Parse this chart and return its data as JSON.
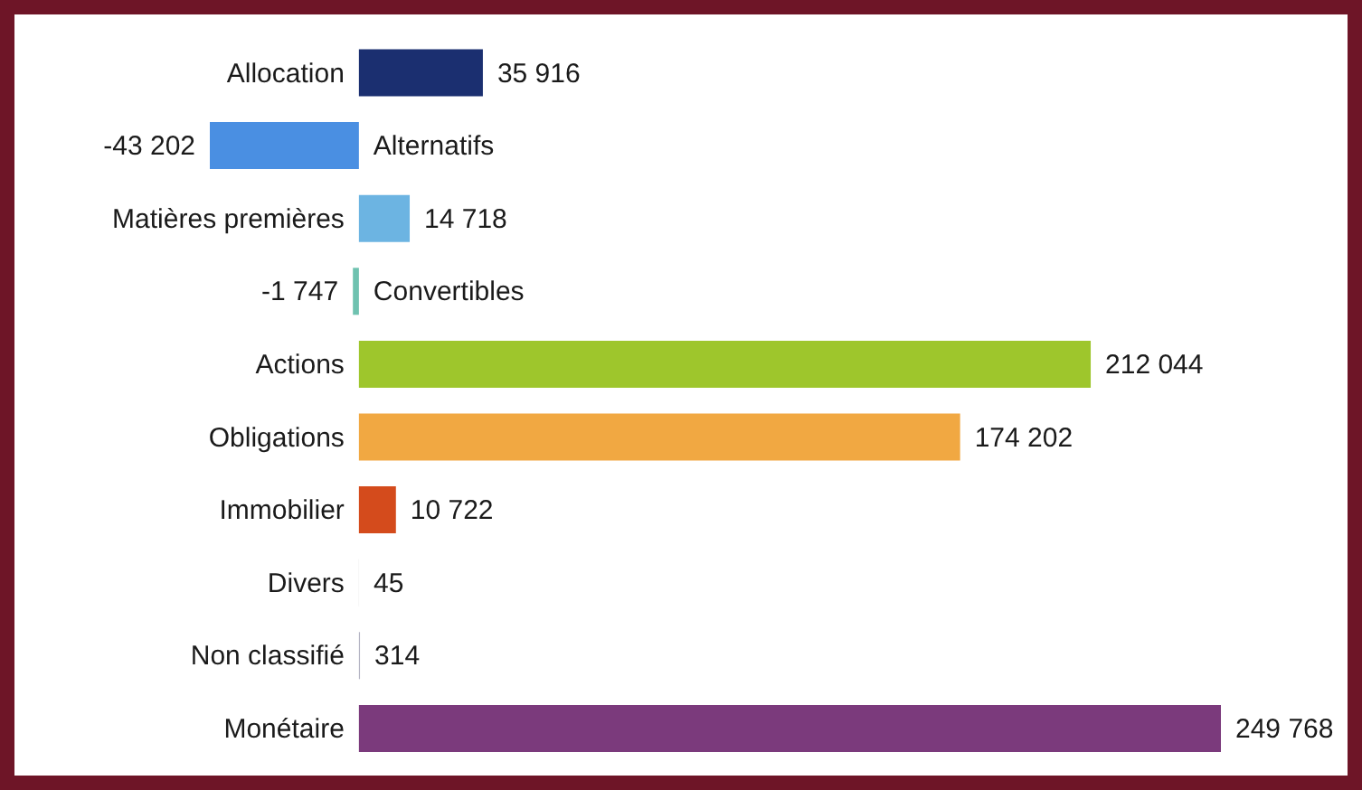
{
  "chart_data": {
    "type": "bar",
    "orientation": "horizontal",
    "categories": [
      "Allocation",
      "Alternatifs",
      "Matières premières",
      "Convertibles",
      "Actions",
      "Obligations",
      "Immobilier",
      "Divers",
      "Non classifié",
      "Monétaire"
    ],
    "values": [
      35916,
      -43202,
      14718,
      -1747,
      212044,
      174202,
      10722,
      45,
      314,
      249768
    ],
    "value_labels": [
      "35 916",
      "-43 202",
      "14 718",
      "-1 747",
      "212 044",
      "174 202",
      "10 722",
      "45",
      "314",
      "249 768"
    ],
    "colors": [
      "#1b2f70",
      "#4a8fe2",
      "#6cb4e2",
      "#6fc2b0",
      "#9ec62c",
      "#f1a842",
      "#d44b1c",
      "#c8c8c8",
      "#b4b4c4",
      "#7b3a7c"
    ],
    "grid": false,
    "legend": false
  }
}
